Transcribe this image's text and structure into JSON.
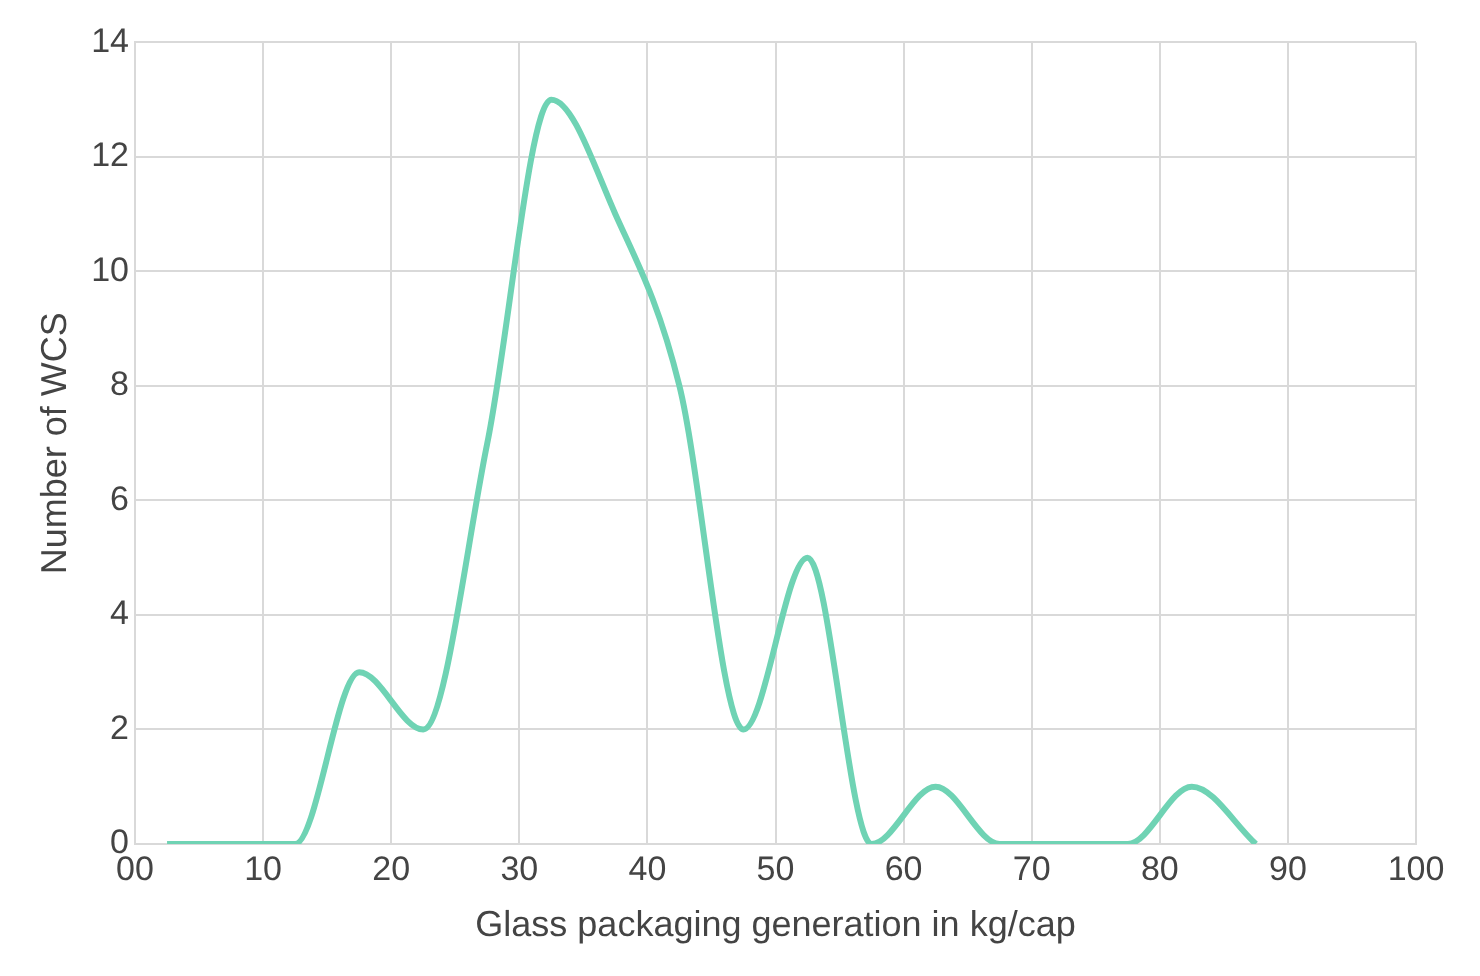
{
  "chart_data": {
    "type": "line",
    "xlabel": "Glass packaging generation in kg/cap",
    "ylabel": "Number of WCS",
    "x": [
      2.5,
      7.5,
      12.5,
      17.5,
      22.5,
      27.5,
      32.5,
      37.5,
      42.5,
      47.5,
      52.5,
      57.5,
      62.5,
      67.5,
      72.5,
      77.5,
      82.5,
      87.5
    ],
    "series": [
      {
        "color": "#6fd3b4",
        "values": [
          0,
          0,
          0,
          3,
          2,
          7,
          13,
          11,
          8,
          2,
          5,
          0,
          1,
          0,
          0,
          0,
          1,
          0
        ]
      }
    ],
    "xlim": [
      0,
      100
    ],
    "xticks": [
      {
        "value": 0,
        "label": "00"
      },
      10,
      20,
      30,
      40,
      50,
      60,
      70,
      80,
      90,
      100
    ],
    "ylim": [
      0,
      14
    ],
    "yticks": [
      0,
      2,
      4,
      6,
      8,
      10,
      12,
      14
    ],
    "grid": true,
    "legend": false,
    "marker": "none",
    "line_style": "solid"
  }
}
